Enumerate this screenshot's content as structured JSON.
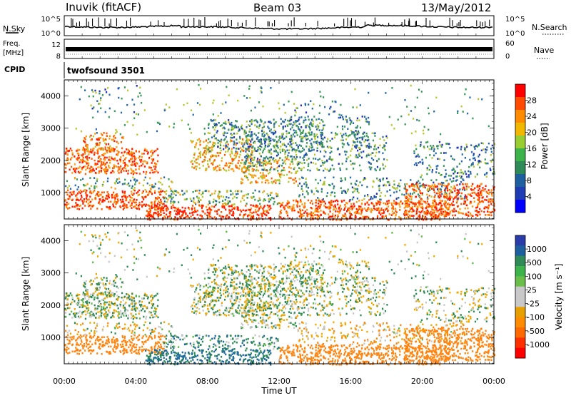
{
  "header": {
    "station": "Inuvik (fitACF)",
    "beam": "Beam 03",
    "date": "13/May/2012"
  },
  "top_panels": {
    "nsky_label": "N.Sky",
    "nsky_ticks": [
      "10^5",
      "10^0"
    ],
    "nsearch_label": "N.Search",
    "nsearch_ticks": [
      "10^5",
      "10^0"
    ],
    "freq_label_1": "Freq.",
    "freq_label_2": "[MHz]",
    "freq_ticks": [
      "12",
      "8"
    ],
    "nave_label": "Nave",
    "nave_ticks": [
      "60",
      "0"
    ],
    "cpid_label": "CPID",
    "cpid_value": "twofsound 3501"
  },
  "chart_data": [
    {
      "type": "heatmap",
      "name": "power",
      "ylabel": "Slant Range [km]",
      "ylim": [
        180,
        4500
      ],
      "yticks": [
        1000,
        2000,
        3000,
        4000
      ],
      "xlim": [
        0,
        24
      ],
      "colorbar_label": "Power [dB]",
      "colorbar_ticks": [
        "28",
        "24",
        "20",
        "16",
        "12",
        "8",
        "4"
      ],
      "colorbar_colors": [
        "#ff0000",
        "#ff4a00",
        "#ff8c00",
        "#f2b700",
        "#9acd32",
        "#3cb44b",
        "#2e8b57",
        "#1e5fa0",
        "#1e3cb4",
        "#0000ff"
      ]
    },
    {
      "type": "heatmap",
      "name": "velocity",
      "ylabel": "Slant Range [km]",
      "ylim": [
        180,
        4500
      ],
      "yticks": [
        1000,
        2000,
        3000,
        4000
      ],
      "xlim": [
        0,
        24
      ],
      "colorbar_label": "Velocity [m s⁻¹]",
      "colorbar_ticks": [
        "1000",
        "500",
        "100",
        "25",
        "-25",
        "-100",
        "-500",
        "-1000"
      ],
      "colorbar_colors": [
        "#2a3caa",
        "#1e5fa0",
        "#2e8b57",
        "#3cb44b",
        "#6abf4a",
        "#c8c8c8",
        "#c8c8c8",
        "#e8a000",
        "#ff8c00",
        "#ff6a00",
        "#ff3000",
        "#ff0000"
      ]
    }
  ],
  "xaxis": {
    "ticks": [
      "00:00",
      "04:00",
      "08:00",
      "12:00",
      "16:00",
      "20:00",
      "00:00"
    ],
    "label": "Time UT"
  }
}
